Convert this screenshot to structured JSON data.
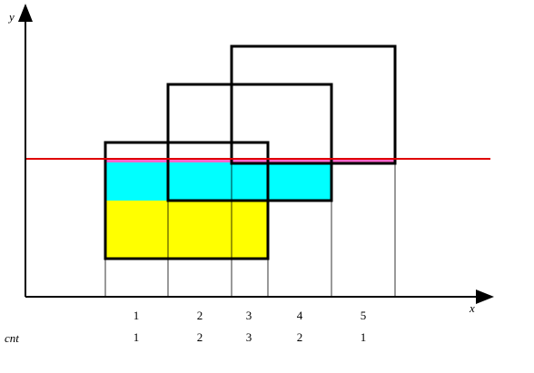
{
  "axes": {
    "x": "x",
    "y": "y"
  },
  "row_label": "cnt",
  "columns": [
    {
      "label": "1",
      "cnt": "1"
    },
    {
      "label": "2",
      "cnt": "2"
    },
    {
      "label": "3",
      "cnt": "3"
    },
    {
      "label": "4",
      "cnt": "2"
    },
    {
      "label": "5",
      "cnt": "1"
    }
  ]
}
